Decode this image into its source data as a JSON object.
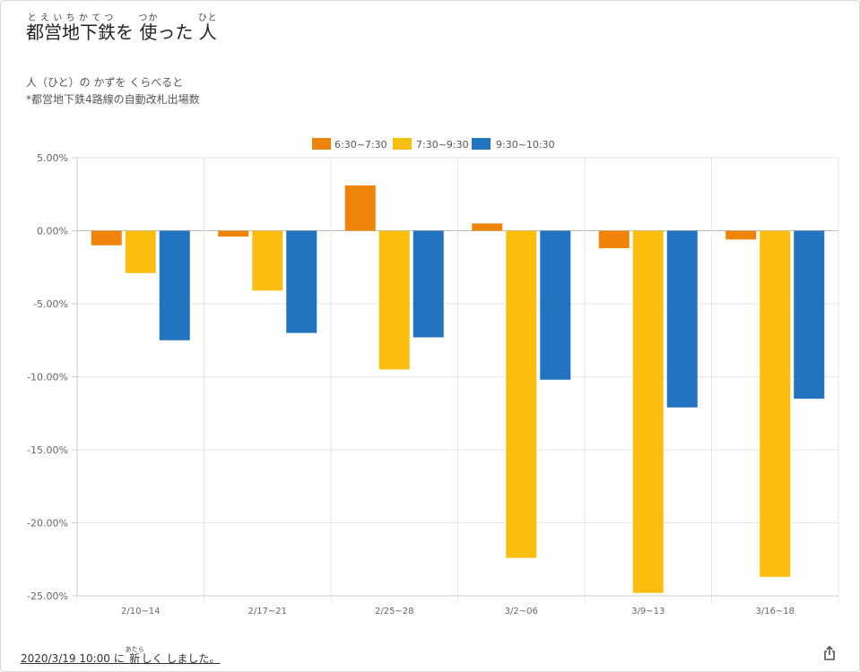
{
  "header": {
    "title_parts": [
      {
        "base": "都営地下鉄",
        "ruby": "とえいちかてつ"
      },
      {
        "text": "を "
      },
      {
        "base": "使",
        "ruby": "つか"
      },
      {
        "text": "った "
      },
      {
        "base": "人",
        "ruby": "ひと"
      }
    ],
    "subtitle1": "人（ひと）の かずを くらべると",
    "subtitle2": "*都営地下鉄4路線の自動改札出場数"
  },
  "chart_data": {
    "type": "bar",
    "categories": [
      "2/10~14",
      "2/17~21",
      "2/25~28",
      "3/2~06",
      "3/9~13",
      "3/16~18"
    ],
    "series": [
      {
        "name": "6:30~7:30",
        "color": "#f0830a",
        "values": [
          -1.0,
          -0.4,
          3.1,
          0.5,
          -1.2,
          -0.6
        ]
      },
      {
        "name": "7:30~9:30",
        "color": "#fbbd0e",
        "values": [
          -2.9,
          -4.1,
          -9.5,
          -22.4,
          -24.8,
          -23.7
        ]
      },
      {
        "name": "9:30~10:30",
        "color": "#2273c0",
        "values": [
          -7.5,
          -7.0,
          -7.3,
          -10.2,
          -12.1,
          -11.5
        ]
      }
    ],
    "ylim": [
      -25,
      5
    ],
    "yticks": [
      "5.00%",
      "0.00%",
      "-5.00%",
      "-10.00%",
      "-15.00%",
      "-20.00%",
      "-25.00%"
    ],
    "legend_position": "top",
    "grid": true
  },
  "footer": {
    "date": "2020/3/19 10:00",
    "text_a": " に ",
    "ruby_base": "新",
    "ruby_text": "あたら",
    "text_b": "しく しました。",
    "share_icon": "share-icon"
  }
}
